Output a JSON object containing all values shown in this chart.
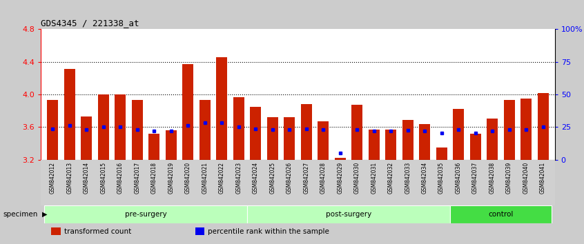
{
  "title": "GDS4345 / 221338_at",
  "samples": [
    "GSM842012",
    "GSM842013",
    "GSM842014",
    "GSM842015",
    "GSM842016",
    "GSM842017",
    "GSM842018",
    "GSM842019",
    "GSM842020",
    "GSM842021",
    "GSM842022",
    "GSM842023",
    "GSM842024",
    "GSM842025",
    "GSM842026",
    "GSM842027",
    "GSM842028",
    "GSM842029",
    "GSM842030",
    "GSM842031",
    "GSM842032",
    "GSM842033",
    "GSM842034",
    "GSM842035",
    "GSM842036",
    "GSM842037",
    "GSM842038",
    "GSM842039",
    "GSM842040",
    "GSM842041"
  ],
  "bar_values": [
    3.93,
    4.31,
    3.73,
    4.0,
    4.0,
    3.93,
    3.52,
    3.56,
    4.37,
    3.93,
    4.46,
    3.97,
    3.85,
    3.72,
    3.72,
    3.88,
    3.67,
    3.22,
    3.87,
    3.57,
    3.57,
    3.69,
    3.64,
    3.35,
    3.82,
    3.52,
    3.7,
    3.93,
    3.95,
    4.02
  ],
  "blue_dot_values": [
    3.58,
    3.62,
    3.57,
    3.6,
    3.6,
    3.57,
    3.55,
    3.55,
    3.62,
    3.65,
    3.65,
    3.6,
    3.58,
    3.57,
    3.57,
    3.58,
    3.57,
    3.28,
    3.57,
    3.55,
    3.55,
    3.56,
    3.55,
    3.53,
    3.57,
    3.53,
    3.55,
    3.57,
    3.57,
    3.6
  ],
  "groups": [
    {
      "label": "pre-surgery",
      "start": 0,
      "end": 12,
      "color": "#bbffbb"
    },
    {
      "label": "post-surgery",
      "start": 12,
      "end": 24,
      "color": "#bbffbb"
    },
    {
      "label": "control",
      "start": 24,
      "end": 30,
      "color": "#44dd44"
    }
  ],
  "ylim": [
    3.2,
    4.8
  ],
  "yticks_left": [
    3.2,
    3.6,
    4.0,
    4.4,
    4.8
  ],
  "yticks_right_pct": [
    0,
    25,
    50,
    75,
    100
  ],
  "right_ylabels": [
    "0",
    "25",
    "50",
    "75",
    "100%"
  ],
  "bar_color": "#cc2200",
  "dot_color": "#0000ee",
  "bar_width": 0.65,
  "bg_color": "#cccccc",
  "plot_bg": "#ffffff",
  "legend_items": [
    {
      "label": "transformed count",
      "color": "#cc2200"
    },
    {
      "label": "percentile rank within the sample",
      "color": "#0000ee"
    }
  ]
}
